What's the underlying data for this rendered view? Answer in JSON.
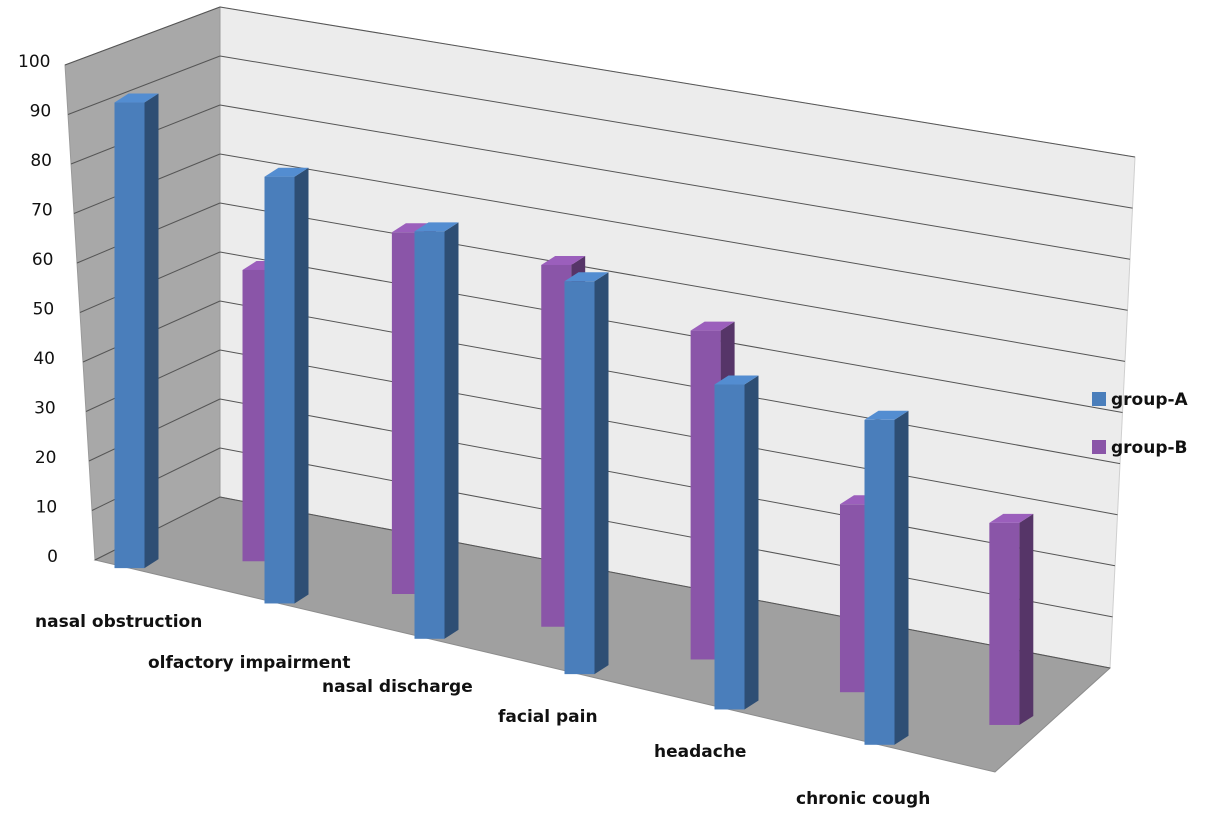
{
  "chart_data": {
    "type": "bar",
    "title": "",
    "xlabel": "",
    "ylabel": "",
    "ylim": [
      0,
      100
    ],
    "yticks": [
      0,
      10,
      20,
      30,
      40,
      50,
      60,
      70,
      80,
      90,
      100
    ],
    "categories": [
      "nasal obstruction",
      "olfactory impairment",
      "nasal discharge",
      "facial pain",
      "headache",
      "chronic cough"
    ],
    "series": [
      {
        "name": "group-A",
        "color": "#4a7ebb",
        "values": [
          96,
          88,
          84,
          81,
          67,
          67
        ]
      },
      {
        "name": "group-B",
        "color": "#8a55a8",
        "values": [
          62,
          77,
          77,
          70,
          40,
          43
        ]
      }
    ],
    "grid": true,
    "legend": "right",
    "style": "3d-clustered-column"
  }
}
